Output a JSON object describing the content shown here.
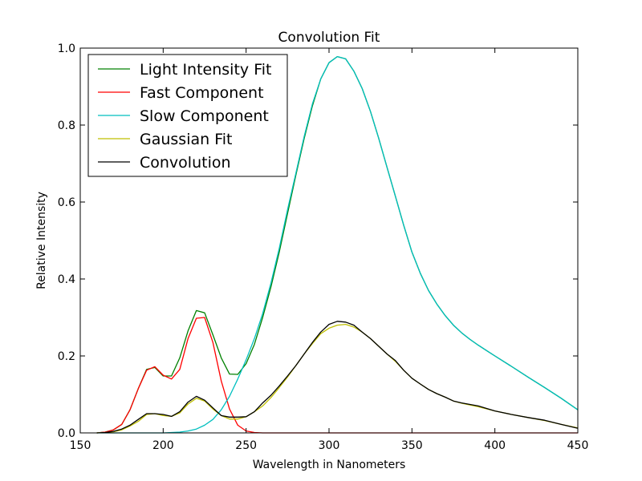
{
  "chart_data": {
    "type": "line",
    "title": "Convolution Fit",
    "xlabel": "Wavelength in Nanometers",
    "ylabel": "Relative Intensity",
    "xlim": [
      150,
      450
    ],
    "ylim": [
      0,
      1.0
    ],
    "xticks": [
      150,
      200,
      250,
      300,
      350,
      400,
      450
    ],
    "xtick_labels": [
      "150",
      "200",
      "250",
      "300",
      "350",
      "400",
      "450"
    ],
    "yticks": [
      0,
      0.2,
      0.4,
      0.6,
      0.8,
      1.0
    ],
    "ytick_labels": [
      "0.0",
      "0.2",
      "0.4",
      "0.6",
      "0.8",
      "1.0"
    ],
    "grid": false,
    "legend_position": "top-left",
    "series": [
      {
        "name": "Light Intensity Fit",
        "color": "#008000",
        "x": [
          160,
          165,
          170,
          175,
          180,
          185,
          190,
          195,
          200,
          205,
          210,
          215,
          220,
          225,
          230,
          235,
          240,
          245,
          250,
          255,
          260,
          265,
          270,
          275,
          280,
          285,
          290,
          295,
          300,
          305,
          310,
          315,
          320,
          325,
          330,
          335,
          340,
          345,
          350,
          355,
          360,
          365,
          370,
          375,
          380,
          385,
          390,
          395,
          400,
          410,
          420,
          430,
          440,
          450
        ],
        "y": [
          0,
          0.002,
          0.008,
          0.022,
          0.06,
          0.115,
          0.165,
          0.17,
          0.148,
          0.148,
          0.195,
          0.265,
          0.318,
          0.312,
          0.255,
          0.195,
          0.153,
          0.152,
          0.18,
          0.23,
          0.3,
          0.38,
          0.47,
          0.57,
          0.67,
          0.765,
          0.85,
          0.92,
          0.962,
          0.978,
          0.972,
          0.94,
          0.895,
          0.835,
          0.765,
          0.69,
          0.615,
          0.54,
          0.47,
          0.415,
          0.37,
          0.335,
          0.305,
          0.28,
          0.26,
          0.243,
          0.228,
          0.214,
          0.2,
          0.173,
          0.145,
          0.118,
          0.09,
          0.06
        ]
      },
      {
        "name": "Fast Component",
        "color": "#ff0000",
        "x": [
          160,
          165,
          170,
          175,
          180,
          185,
          190,
          195,
          200,
          205,
          210,
          215,
          220,
          225,
          230,
          235,
          240,
          245,
          250,
          255,
          260,
          300,
          350,
          400,
          450
        ],
        "y": [
          0,
          0.002,
          0.008,
          0.022,
          0.06,
          0.115,
          0.163,
          0.172,
          0.15,
          0.14,
          0.165,
          0.245,
          0.298,
          0.3,
          0.235,
          0.135,
          0.062,
          0.02,
          0.005,
          0.001,
          0,
          0,
          0,
          0,
          0
        ]
      },
      {
        "name": "Slow Component",
        "color": "#00bfbf",
        "x": [
          160,
          180,
          200,
          205,
          210,
          215,
          220,
          225,
          230,
          235,
          240,
          245,
          250,
          255,
          260,
          265,
          270,
          275,
          280,
          285,
          290,
          295,
          300,
          305,
          310,
          315,
          320,
          325,
          330,
          335,
          340,
          345,
          350,
          355,
          360,
          365,
          370,
          375,
          380,
          385,
          390,
          395,
          400,
          410,
          420,
          430,
          440,
          450
        ],
        "y": [
          0,
          0,
          0,
          0.001,
          0.002,
          0.005,
          0.01,
          0.02,
          0.035,
          0.06,
          0.095,
          0.14,
          0.19,
          0.245,
          0.31,
          0.39,
          0.48,
          0.58,
          0.675,
          0.77,
          0.855,
          0.92,
          0.962,
          0.978,
          0.972,
          0.94,
          0.895,
          0.835,
          0.765,
          0.69,
          0.615,
          0.54,
          0.47,
          0.415,
          0.37,
          0.335,
          0.305,
          0.28,
          0.26,
          0.243,
          0.228,
          0.214,
          0.2,
          0.173,
          0.145,
          0.118,
          0.09,
          0.06
        ]
      },
      {
        "name": "Gaussian Fit",
        "color": "#bfbf00",
        "x": [
          160,
          165,
          170,
          175,
          180,
          185,
          190,
          195,
          200,
          205,
          210,
          215,
          220,
          225,
          230,
          235,
          240,
          245,
          250,
          255,
          260,
          265,
          270,
          275,
          280,
          285,
          290,
          295,
          300,
          305,
          310,
          315,
          320,
          325,
          330,
          335,
          340,
          345,
          350,
          355,
          360,
          365,
          370,
          375,
          380,
          390,
          400,
          410,
          420,
          430,
          440,
          450
        ],
        "y": [
          0,
          0.001,
          0.003,
          0.008,
          0.018,
          0.03,
          0.048,
          0.05,
          0.045,
          0.043,
          0.052,
          0.075,
          0.09,
          0.083,
          0.062,
          0.045,
          0.036,
          0.036,
          0.042,
          0.055,
          0.07,
          0.092,
          0.118,
          0.145,
          0.175,
          0.205,
          0.232,
          0.258,
          0.272,
          0.28,
          0.282,
          0.275,
          0.262,
          0.245,
          0.225,
          0.205,
          0.186,
          0.163,
          0.142,
          0.127,
          0.113,
          0.102,
          0.093,
          0.083,
          0.077,
          0.068,
          0.057,
          0.048,
          0.04,
          0.032,
          0.022,
          0.013
        ]
      },
      {
        "name": "Convolution",
        "color": "#000000",
        "x": [
          160,
          165,
          170,
          175,
          180,
          185,
          190,
          195,
          200,
          205,
          210,
          215,
          220,
          225,
          230,
          235,
          240,
          245,
          250,
          255,
          260,
          265,
          270,
          275,
          280,
          285,
          290,
          295,
          300,
          305,
          310,
          315,
          320,
          325,
          330,
          335,
          340,
          345,
          350,
          355,
          360,
          365,
          370,
          375,
          380,
          390,
          400,
          410,
          420,
          430,
          440,
          450
        ],
        "y": [
          0,
          0.001,
          0.004,
          0.01,
          0.02,
          0.035,
          0.05,
          0.05,
          0.048,
          0.043,
          0.055,
          0.08,
          0.095,
          0.085,
          0.065,
          0.045,
          0.041,
          0.041,
          0.042,
          0.055,
          0.078,
          0.098,
          0.122,
          0.148,
          0.175,
          0.205,
          0.235,
          0.262,
          0.282,
          0.29,
          0.288,
          0.28,
          0.262,
          0.245,
          0.225,
          0.205,
          0.188,
          0.163,
          0.142,
          0.127,
          0.113,
          0.102,
          0.093,
          0.083,
          0.078,
          0.07,
          0.057,
          0.048,
          0.04,
          0.033,
          0.022,
          0.012
        ]
      }
    ]
  }
}
